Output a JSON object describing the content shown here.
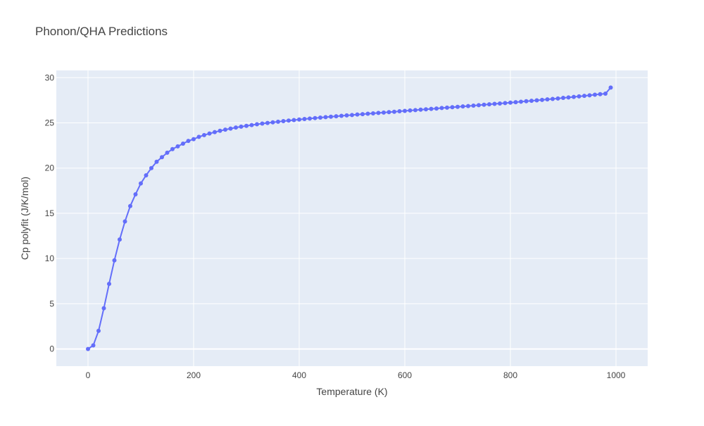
{
  "chart_data": {
    "type": "line",
    "title": "Phonon/QHA Predictions",
    "xlabel": "Temperature (K)",
    "ylabel": "Cp polyfit (J/K/mol)",
    "xlim": [
      -60,
      1060
    ],
    "ylim": [
      -1.9,
      30.8
    ],
    "xticks": [
      0,
      200,
      400,
      600,
      800,
      1000
    ],
    "yticks": [
      0,
      5,
      10,
      15,
      20,
      25,
      30
    ],
    "grid": true,
    "legend": "none",
    "colors": {
      "plot_bg": "#e5ecf6",
      "grid": "#ffffff",
      "series": "#636efa",
      "text": "#444444"
    },
    "series": [
      {
        "name": "",
        "mode": "lines+markers",
        "x": [
          0,
          10,
          20,
          30,
          40,
          50,
          60,
          70,
          80,
          90,
          100,
          110,
          120,
          130,
          140,
          150,
          160,
          170,
          180,
          190,
          200,
          210,
          220,
          230,
          240,
          250,
          260,
          270,
          280,
          290,
          300,
          310,
          320,
          330,
          340,
          350,
          360,
          370,
          380,
          390,
          400,
          410,
          420,
          430,
          440,
          450,
          460,
          470,
          480,
          490,
          500,
          510,
          520,
          530,
          540,
          550,
          560,
          570,
          580,
          590,
          600,
          610,
          620,
          630,
          640,
          650,
          660,
          670,
          680,
          690,
          700,
          710,
          720,
          730,
          740,
          750,
          760,
          770,
          780,
          790,
          800,
          810,
          820,
          830,
          840,
          850,
          860,
          870,
          880,
          890,
          900,
          910,
          920,
          930,
          940,
          950,
          960,
          970,
          980,
          990
        ],
        "y": [
          0,
          0.4,
          2.0,
          4.5,
          7.2,
          9.8,
          12.1,
          14.1,
          15.8,
          17.1,
          18.3,
          19.2,
          20.0,
          20.7,
          21.2,
          21.7,
          22.1,
          22.4,
          22.7,
          23.0,
          23.2,
          23.45,
          23.65,
          23.82,
          23.98,
          24.12,
          24.25,
          24.37,
          24.48,
          24.58,
          24.67,
          24.76,
          24.84,
          24.92,
          24.99,
          25.06,
          25.13,
          25.19,
          25.25,
          25.31,
          25.37,
          25.43,
          25.48,
          25.53,
          25.58,
          25.63,
          25.68,
          25.73,
          25.78,
          25.83,
          25.87,
          25.92,
          25.96,
          26.01,
          26.05,
          26.1,
          26.14,
          26.19,
          26.23,
          26.28,
          26.32,
          26.37,
          26.41,
          26.46,
          26.5,
          26.55,
          26.59,
          26.64,
          26.68,
          26.73,
          26.77,
          26.82,
          26.86,
          26.91,
          26.96,
          27.0,
          27.05,
          27.1,
          27.14,
          27.19,
          27.24,
          27.29,
          27.34,
          27.39,
          27.44,
          27.49,
          27.54,
          27.6,
          27.65,
          27.7,
          27.76,
          27.81,
          27.87,
          27.93,
          27.99,
          28.05,
          28.11,
          28.17,
          28.23,
          28.9
        ]
      }
    ]
  }
}
